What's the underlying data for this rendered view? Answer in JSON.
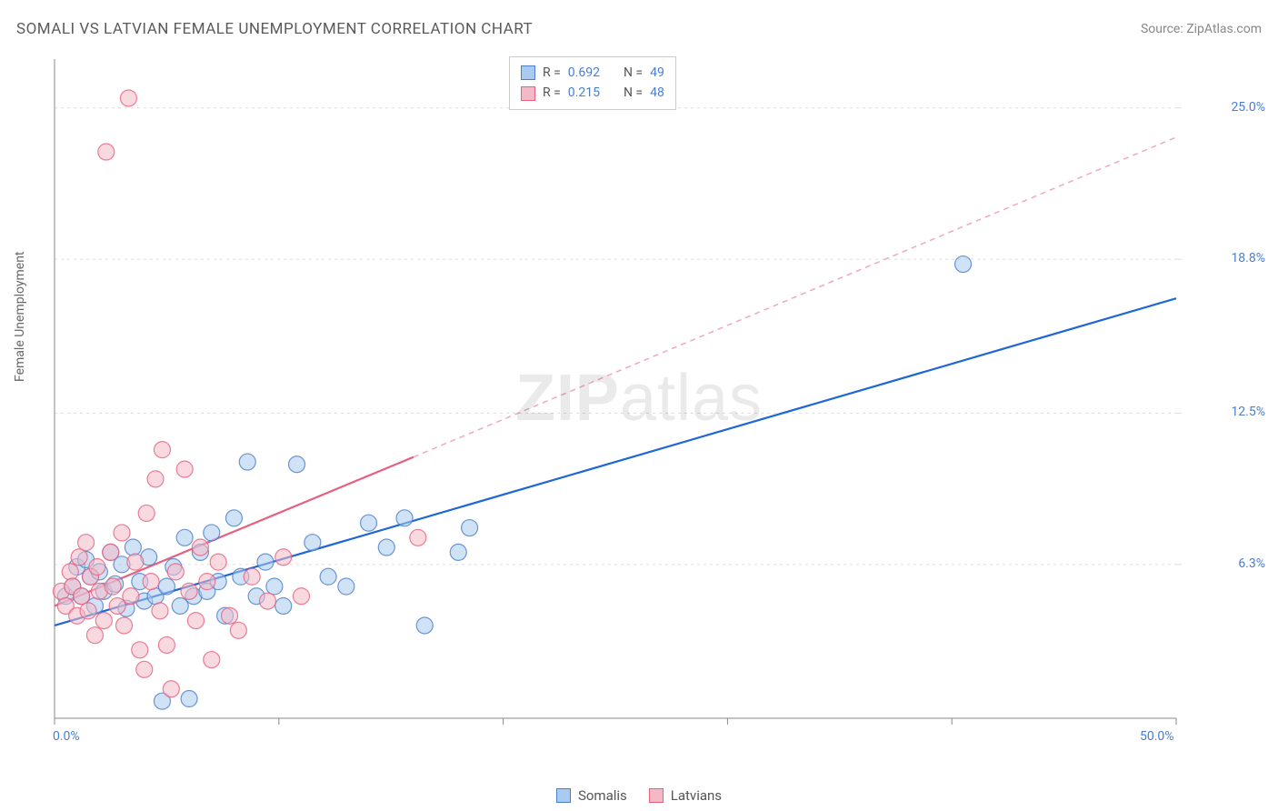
{
  "title": "SOMALI VS LATVIAN FEMALE UNEMPLOYMENT CORRELATION CHART",
  "source_label": "Source: ZipAtlas.com",
  "y_axis_label": "Female Unemployment",
  "watermark": {
    "part1": "ZIP",
    "part2": "atlas"
  },
  "chart": {
    "type": "scatter",
    "background_color": "#ffffff",
    "grid_color": "#dddddd",
    "axis_color": "#888888",
    "tick_label_color": "#4a7ec9",
    "tick_label_fontsize": 14,
    "axis_label_fontsize": 14,
    "title_fontsize": 17,
    "title_color": "#5a5a5a",
    "source_color": "#888888",
    "xlim": [
      0,
      50
    ],
    "ylim": [
      0,
      27
    ],
    "x_ticks": [
      0,
      10,
      20,
      30,
      40,
      50
    ],
    "x_tick_labels_shown": {
      "0": "0.0%",
      "50": "50.0%"
    },
    "y_ticks": [
      6.3,
      12.5,
      18.8,
      25.0
    ],
    "y_tick_labels": [
      "6.3%",
      "12.5%",
      "18.8%",
      "25.0%"
    ],
    "marker_radius": 9,
    "marker_opacity": 0.55,
    "marker_stroke_width": 1.2
  },
  "series": [
    {
      "name": "Somalis",
      "color_fill": "#a9cbef",
      "color_stroke": "#4a7ec9",
      "R": "0.692",
      "N": "49",
      "trend": {
        "x1": 0,
        "y1": 3.8,
        "x2": 50,
        "y2": 17.2,
        "stroke": "#1f66d6",
        "width": 2.2,
        "dash": "none"
      },
      "points": [
        [
          0.5,
          5.0
        ],
        [
          0.8,
          5.4
        ],
        [
          1.0,
          6.2
        ],
        [
          1.2,
          5.0
        ],
        [
          1.4,
          6.5
        ],
        [
          1.6,
          5.8
        ],
        [
          1.8,
          4.6
        ],
        [
          2.0,
          6.0
        ],
        [
          2.2,
          5.2
        ],
        [
          2.5,
          6.8
        ],
        [
          2.7,
          5.5
        ],
        [
          3.0,
          6.3
        ],
        [
          3.2,
          4.5
        ],
        [
          3.5,
          7.0
        ],
        [
          3.8,
          5.6
        ],
        [
          4.0,
          4.8
        ],
        [
          4.2,
          6.6
        ],
        [
          4.5,
          5.0
        ],
        [
          4.8,
          0.7
        ],
        [
          5.0,
          5.4
        ],
        [
          5.3,
          6.2
        ],
        [
          5.6,
          4.6
        ],
        [
          5.8,
          7.4
        ],
        [
          6.0,
          0.8
        ],
        [
          6.2,
          5.0
        ],
        [
          6.5,
          6.8
        ],
        [
          6.8,
          5.2
        ],
        [
          7.0,
          7.6
        ],
        [
          7.3,
          5.6
        ],
        [
          7.6,
          4.2
        ],
        [
          8.0,
          8.2
        ],
        [
          8.3,
          5.8
        ],
        [
          8.6,
          10.5
        ],
        [
          9.0,
          5.0
        ],
        [
          9.4,
          6.4
        ],
        [
          9.8,
          5.4
        ],
        [
          10.2,
          4.6
        ],
        [
          10.8,
          10.4
        ],
        [
          11.5,
          7.2
        ],
        [
          12.2,
          5.8
        ],
        [
          13.0,
          5.4
        ],
        [
          14.0,
          8.0
        ],
        [
          14.8,
          7.0
        ],
        [
          15.6,
          8.2
        ],
        [
          16.5,
          3.8
        ],
        [
          18.0,
          6.8
        ],
        [
          18.5,
          7.8
        ],
        [
          40.5,
          18.6
        ]
      ]
    },
    {
      "name": "Latvians",
      "color_fill": "#f4b9c7",
      "color_stroke": "#e6607f",
      "R": "0.215",
      "N": "48",
      "trend_solid": {
        "x1": 0,
        "y1": 4.6,
        "x2": 16,
        "y2": 10.7,
        "stroke": "#e6607f",
        "width": 2.2
      },
      "trend_dashed": {
        "x1": 16,
        "y1": 10.7,
        "x2": 50,
        "y2": 23.8,
        "stroke": "#f0a9b8",
        "width": 1.5,
        "dash": "6,5"
      },
      "points": [
        [
          0.3,
          5.2
        ],
        [
          0.5,
          4.6
        ],
        [
          0.7,
          6.0
        ],
        [
          0.8,
          5.4
        ],
        [
          1.0,
          4.2
        ],
        [
          1.1,
          6.6
        ],
        [
          1.2,
          5.0
        ],
        [
          1.4,
          7.2
        ],
        [
          1.5,
          4.4
        ],
        [
          1.6,
          5.8
        ],
        [
          1.8,
          3.4
        ],
        [
          1.9,
          6.2
        ],
        [
          2.0,
          5.2
        ],
        [
          2.2,
          4.0
        ],
        [
          2.3,
          23.2
        ],
        [
          2.5,
          6.8
        ],
        [
          2.6,
          5.4
        ],
        [
          2.8,
          4.6
        ],
        [
          3.0,
          7.6
        ],
        [
          3.1,
          3.8
        ],
        [
          3.3,
          25.4
        ],
        [
          3.4,
          5.0
        ],
        [
          3.6,
          6.4
        ],
        [
          3.8,
          2.8
        ],
        [
          4.0,
          2.0
        ],
        [
          4.1,
          8.4
        ],
        [
          4.3,
          5.6
        ],
        [
          4.5,
          9.8
        ],
        [
          4.7,
          4.4
        ],
        [
          4.8,
          11.0
        ],
        [
          5.0,
          3.0
        ],
        [
          5.2,
          1.2
        ],
        [
          5.4,
          6.0
        ],
        [
          5.8,
          10.2
        ],
        [
          6.0,
          5.2
        ],
        [
          6.3,
          4.0
        ],
        [
          6.5,
          7.0
        ],
        [
          6.8,
          5.6
        ],
        [
          7.0,
          2.4
        ],
        [
          7.3,
          6.4
        ],
        [
          7.8,
          4.2
        ],
        [
          8.2,
          3.6
        ],
        [
          8.8,
          5.8
        ],
        [
          9.5,
          4.8
        ],
        [
          10.2,
          6.6
        ],
        [
          11.0,
          5.0
        ],
        [
          16.2,
          7.4
        ]
      ]
    }
  ],
  "legend_top_labels": {
    "R": "R =",
    "N": "N ="
  },
  "legend_bottom": [
    {
      "label": "Somalis",
      "fill": "#a9cbef",
      "stroke": "#4a7ec9"
    },
    {
      "label": "Latvians",
      "fill": "#f4b9c7",
      "stroke": "#e6607f"
    }
  ]
}
